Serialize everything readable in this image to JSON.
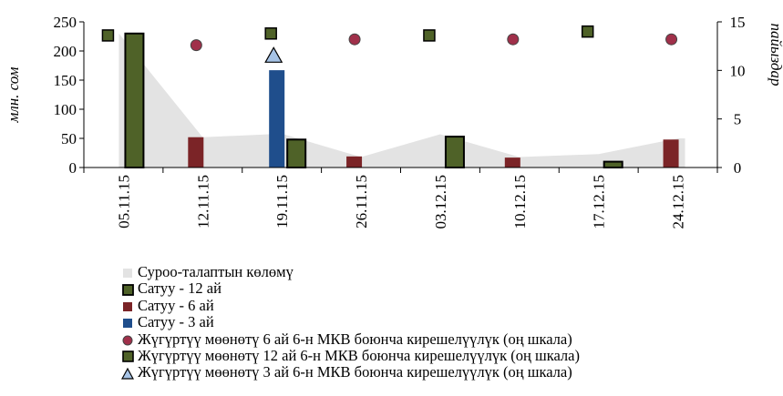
{
  "chart_data": {
    "type": "bar",
    "categories": [
      "05.11.15",
      "12.11.15",
      "19.11.15",
      "26.11.15",
      "03.12.15",
      "10.12.15",
      "17.12.15",
      "24.12.15"
    ],
    "left_axis": {
      "label": "млн. сом",
      "ylim": [
        0,
        250
      ],
      "ticks": [
        "0",
        "50",
        "100",
        "150",
        "200",
        "250"
      ]
    },
    "right_axis": {
      "label": "пайыздар",
      "ylim": [
        0,
        15
      ],
      "ticks": [
        "0",
        "5",
        "10",
        "15"
      ]
    },
    "series": [
      {
        "name": "Суроо-талаптын көлөмү",
        "kind": "area",
        "axis": "left",
        "color": "#e3e3e3",
        "values": [
          230,
          52,
          58,
          18,
          57,
          18,
          23,
          50
        ]
      },
      {
        "name": "Сатуу - 12 ай",
        "kind": "bar",
        "axis": "left",
        "color": "#4f6228",
        "values": [
          230,
          null,
          48,
          null,
          53,
          null,
          10,
          null
        ]
      },
      {
        "name": "Сатуу - 6 ай",
        "kind": "bar",
        "axis": "left",
        "color": "#7b2427",
        "values": [
          null,
          52,
          null,
          19,
          null,
          17,
          null,
          48
        ]
      },
      {
        "name": "Сатуу - 3 ай",
        "kind": "bar",
        "axis": "left",
        "color": "#1f4e8c",
        "values": [
          null,
          null,
          167,
          null,
          null,
          null,
          null,
          null
        ]
      },
      {
        "name": "Жүгүртүү мөөнөтү 6 ай 6-н МКВ боюнча кирешелүүлүк (оң шкала)",
        "kind": "marker",
        "shape": "circle",
        "axis": "right",
        "color": "#a0304a",
        "values": [
          null,
          12.6,
          null,
          13.2,
          null,
          13.2,
          null,
          13.2
        ]
      },
      {
        "name": "Жүгүртүү мөөнөтү 12 ай 6-н МКВ боюнча кирешелүүлүк (оң шкала)",
        "kind": "marker",
        "shape": "square",
        "axis": "right",
        "color": "#4f6228",
        "values": [
          13.6,
          null,
          13.8,
          null,
          13.6,
          null,
          14.0,
          null
        ]
      },
      {
        "name": "Жүгүртүү мөөнөтү 3 ай 6-н МКВ боюнча кирешелүүлүк (оң шкала)",
        "kind": "marker",
        "shape": "triangle",
        "axis": "right",
        "color": "#a6c3e6",
        "values": [
          null,
          null,
          11.5,
          null,
          null,
          null,
          null,
          null
        ]
      }
    ],
    "grid": false,
    "legend_position": "bottom"
  }
}
